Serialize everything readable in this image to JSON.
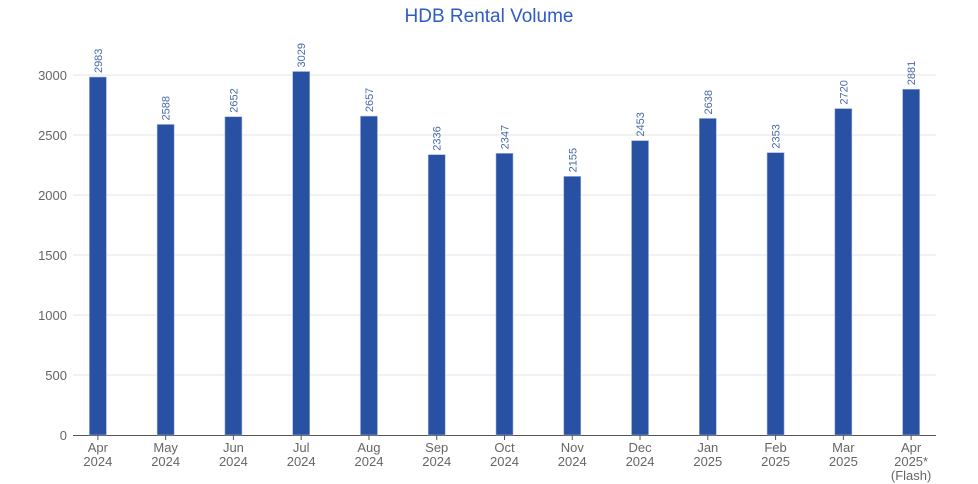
{
  "chart_data": {
    "type": "bar",
    "title": "HDB Rental Volume",
    "categories": [
      [
        "Apr",
        "2024"
      ],
      [
        "May",
        "2024"
      ],
      [
        "Jun",
        "2024"
      ],
      [
        "Jul",
        "2024"
      ],
      [
        "Aug",
        "2024"
      ],
      [
        "Sep",
        "2024"
      ],
      [
        "Oct",
        "2024"
      ],
      [
        "Nov",
        "2024"
      ],
      [
        "Dec",
        "2024"
      ],
      [
        "Jan",
        "2025"
      ],
      [
        "Feb",
        "2025"
      ],
      [
        "Mar",
        "2025"
      ],
      [
        "Apr",
        "2025*",
        "(Flash)"
      ]
    ],
    "values": [
      2983,
      2588,
      2652,
      3029,
      2657,
      2336,
      2347,
      2155,
      2453,
      2638,
      2353,
      2720,
      2881
    ],
    "xlabel": "",
    "ylabel": "",
    "ylim": [
      0,
      3000
    ],
    "yticks": [
      0,
      500,
      1000,
      1500,
      2000,
      2500,
      3000
    ],
    "grid": true,
    "data_labels": true,
    "colors": {
      "bar": "#2851a3",
      "title": "#2d5cc4",
      "label": "#4a6aa8"
    }
  }
}
